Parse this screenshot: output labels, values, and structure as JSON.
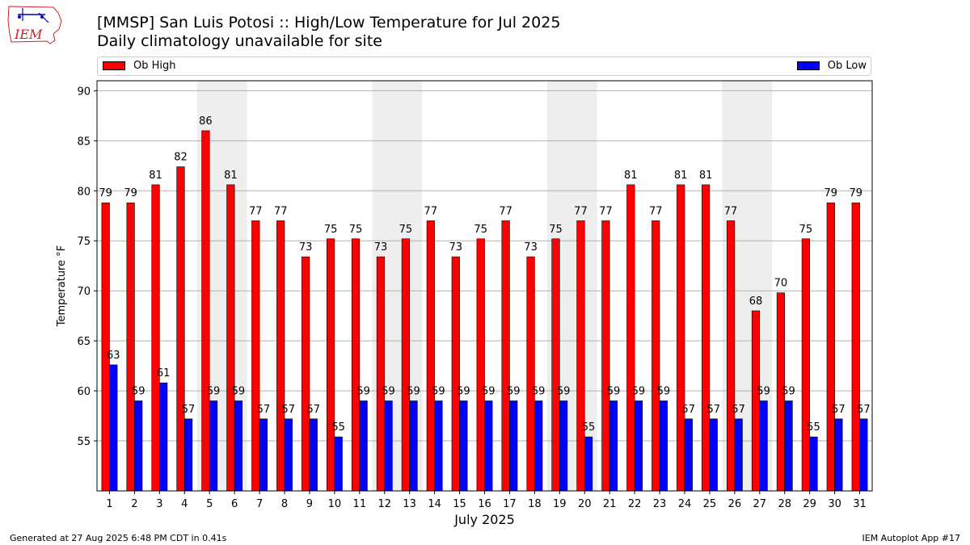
{
  "title_line1": "[MMSP] San Luis Potosi :: High/Low Temperature for Jul 2025",
  "title_line2": "Daily climatology unavailable for site",
  "logo_text": "IEM",
  "footer_left": "Generated at 27 Aug 2025 6:48 PM CDT in 0.41s",
  "footer_right": "IEM Autoplot App #17",
  "colors": {
    "high": "#ff0000",
    "low": "#0000ff",
    "weekend_band": "#eeeeee",
    "grid": "#b0b0b0"
  },
  "chart_data": {
    "type": "bar",
    "xlabel": "July 2025",
    "ylabel": "Temperature °F",
    "ylim": [
      50,
      91
    ],
    "yticks": [
      55,
      60,
      65,
      70,
      75,
      80,
      85,
      90
    ],
    "categories": [
      "1",
      "2",
      "3",
      "4",
      "5",
      "6",
      "7",
      "8",
      "9",
      "10",
      "11",
      "12",
      "13",
      "14",
      "15",
      "16",
      "17",
      "18",
      "19",
      "20",
      "21",
      "22",
      "23",
      "24",
      "25",
      "26",
      "27",
      "28",
      "29",
      "30",
      "31"
    ],
    "shaded_days": [
      5,
      6,
      12,
      13,
      19,
      20,
      26,
      27
    ],
    "grid": true,
    "legend_position": "top",
    "series": [
      {
        "name": "Ob High",
        "color": "#ff0000",
        "values": [
          78.8,
          78.8,
          80.6,
          82.4,
          86,
          80.6,
          77,
          77,
          73.4,
          75.2,
          75.2,
          73.4,
          75.2,
          77,
          73.4,
          75.2,
          77,
          73.4,
          75.2,
          77,
          77,
          80.6,
          77,
          80.6,
          80.6,
          77,
          68,
          69.8,
          75.2,
          78.8,
          78.8
        ],
        "labels": [
          "79",
          "79",
          "81",
          "82",
          "86",
          "81",
          "77",
          "77",
          "73",
          "75",
          "75",
          "73",
          "75",
          "77",
          "73",
          "75",
          "77",
          "73",
          "75",
          "77",
          "77",
          "81",
          "77",
          "81",
          "81",
          "77",
          "68",
          "70",
          "75",
          "79",
          "79"
        ]
      },
      {
        "name": "Ob Low",
        "color": "#0000ff",
        "values": [
          62.6,
          59,
          60.8,
          57.2,
          59,
          59,
          57.2,
          57.2,
          57.2,
          55.4,
          59,
          59,
          59,
          59,
          59,
          59,
          59,
          59,
          59,
          55.4,
          59,
          59,
          59,
          57.2,
          57.2,
          57.2,
          59,
          59,
          55.4,
          57.2,
          57.2
        ],
        "labels": [
          "63",
          "59",
          "61",
          "57",
          "59",
          "59",
          "57",
          "57",
          "57",
          "55",
          "59",
          "59",
          "59",
          "59",
          "59",
          "59",
          "59",
          "59",
          "59",
          "55",
          "59",
          "59",
          "59",
          "57",
          "57",
          "57",
          "59",
          "59",
          "55",
          "57",
          "57"
        ]
      }
    ]
  }
}
